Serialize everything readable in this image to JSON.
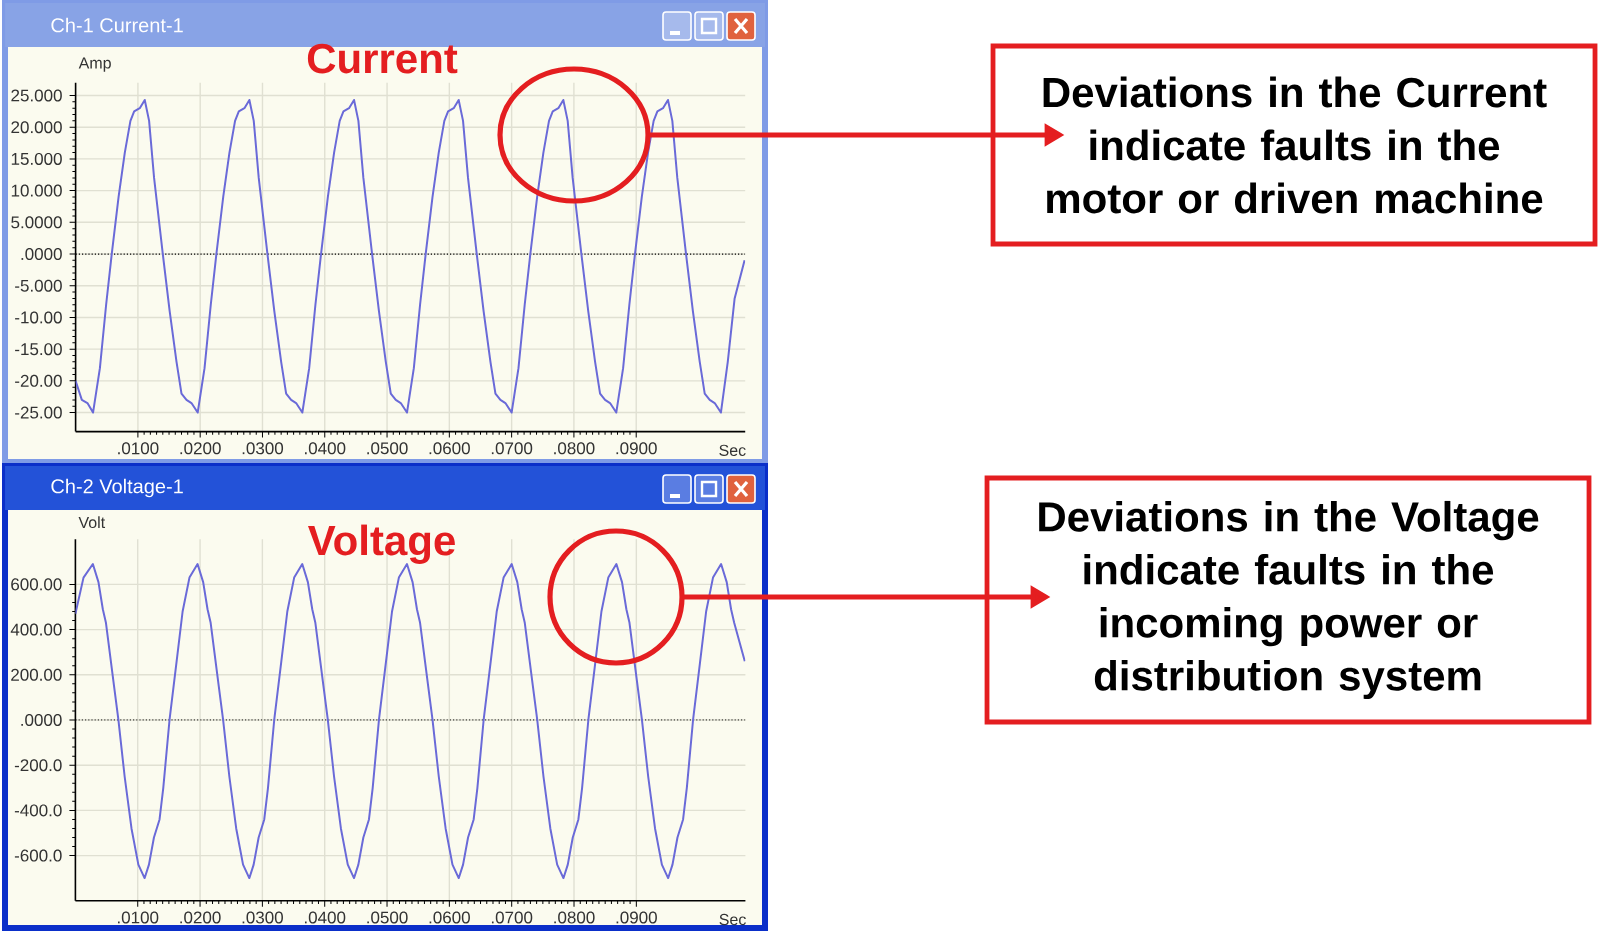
{
  "chart_data": [
    {
      "type": "line",
      "title": "Ch-1 Current-1",
      "subtitle": "Current",
      "xlabel": "Sec",
      "ylabel": "Amp",
      "color": "#6a6ad8",
      "grid": true,
      "xlim": [
        0,
        0.1075
      ],
      "ylim": [
        -28,
        27
      ],
      "xticks": [
        {
          "value": 0.01,
          "label": ".0100"
        },
        {
          "value": 0.02,
          "label": ".0200"
        },
        {
          "value": 0.03,
          "label": ".0300"
        },
        {
          "value": 0.04,
          "label": ".0400"
        },
        {
          "value": 0.05,
          "label": ".0500"
        },
        {
          "value": 0.06,
          "label": ".0600"
        },
        {
          "value": 0.07,
          "label": ".0700"
        },
        {
          "value": 0.08,
          "label": ".0800"
        },
        {
          "value": 0.09,
          "label": ".0900"
        }
      ],
      "yticks": [
        {
          "value": 25,
          "label": "25.000"
        },
        {
          "value": 20,
          "label": "20.000"
        },
        {
          "value": 15,
          "label": "15.000"
        },
        {
          "value": 10,
          "label": "10.000"
        },
        {
          "value": 5,
          "label": "5.0000"
        },
        {
          "value": 0,
          "label": ".0000"
        },
        {
          "value": -5,
          "label": "-5.000"
        },
        {
          "value": -10,
          "label": "-10.00"
        },
        {
          "value": -15,
          "label": "-15.00"
        },
        {
          "value": -20,
          "label": "-20.00"
        },
        {
          "value": -25,
          "label": "-25.00"
        }
      ],
      "ref_lines": [
        {
          "axis": "y",
          "value": 0,
          "line_style": "dotted",
          "color": "#000000"
        }
      ],
      "annotations": [
        "Deviations in the Current indicate faults in the motor or driven machine"
      ],
      "x": [
        0,
        0.001,
        0.0019,
        0.0028,
        0.0039,
        0.0049,
        0.0058,
        0.0069,
        0.0079,
        0.0088,
        0.0094,
        0.0103,
        0.0111,
        0.0118,
        0.0126,
        0.014,
        0.0151,
        0.0162,
        0.017,
        0.0178,
        0.0186,
        0.0196,
        0.0207,
        0.0217,
        0.0226,
        0.0237,
        0.0247,
        0.0256,
        0.0262,
        0.0271,
        0.0279,
        0.0286,
        0.0294,
        0.0308,
        0.0319,
        0.033,
        0.0338,
        0.0346,
        0.0354,
        0.0364,
        0.0375,
        0.0385,
        0.0394,
        0.0405,
        0.0415,
        0.0424,
        0.043,
        0.0439,
        0.0447,
        0.0454,
        0.0462,
        0.0476,
        0.0487,
        0.0498,
        0.0506,
        0.0514,
        0.0522,
        0.0532,
        0.0543,
        0.0553,
        0.0562,
        0.0573,
        0.0583,
        0.0592,
        0.0598,
        0.0607,
        0.0615,
        0.0622,
        0.063,
        0.0644,
        0.0655,
        0.0666,
        0.0674,
        0.0682,
        0.069,
        0.07,
        0.0711,
        0.0721,
        0.073,
        0.0741,
        0.0751,
        0.076,
        0.0766,
        0.0775,
        0.0783,
        0.079,
        0.0798,
        0.0812,
        0.0823,
        0.0834,
        0.0842,
        0.085,
        0.0858,
        0.0868,
        0.0879,
        0.0889,
        0.0898,
        0.0909,
        0.0919,
        0.0928,
        0.0934,
        0.0943,
        0.0951,
        0.0958,
        0.0966,
        0.098,
        0.0991,
        0.1002,
        0.101,
        0.1018,
        0.1026,
        0.1036,
        0.1047,
        0.1058,
        0.1074
      ],
      "values": [
        -20,
        -23,
        -23.5,
        -25,
        -18,
        -8,
        0,
        9,
        16,
        21,
        22.5,
        23,
        24.3,
        21,
        12,
        0,
        -9,
        -17,
        -22,
        -23,
        -23.5,
        -25,
        -18,
        -8,
        0,
        9,
        16,
        21,
        22.5,
        23,
        24.3,
        21,
        12,
        0,
        -9,
        -17,
        -22,
        -23,
        -23.5,
        -25,
        -18,
        -8,
        0,
        9,
        16,
        21,
        22.5,
        23,
        24.3,
        21,
        12,
        0,
        -9,
        -17,
        -22,
        -23,
        -23.5,
        -25,
        -18,
        -8,
        0,
        9,
        16,
        21,
        22.5,
        23,
        24.3,
        21,
        12,
        0,
        -9,
        -17,
        -22,
        -23,
        -23.5,
        -25,
        -18,
        -8,
        0,
        9,
        16,
        21,
        22.5,
        23,
        24.3,
        21,
        12,
        0,
        -9,
        -17,
        -22,
        -23,
        -23.5,
        -25,
        -18,
        -8,
        0,
        9,
        16,
        21,
        22.5,
        23,
        24.3,
        21,
        12,
        0,
        -9,
        -17,
        -22,
        -23,
        -23.5,
        -25,
        -17,
        -7,
        -1
      ]
    },
    {
      "type": "line",
      "title": "Ch-2 Voltage-1",
      "subtitle": "Voltage",
      "xlabel": "Sec",
      "ylabel": "Volt",
      "color": "#6a6ad8",
      "grid": true,
      "xlim": [
        0,
        0.1075
      ],
      "ylim": [
        -800,
        800
      ],
      "xticks": [
        {
          "value": 0.01,
          "label": ".0100"
        },
        {
          "value": 0.02,
          "label": ".0200"
        },
        {
          "value": 0.03,
          "label": ".0300"
        },
        {
          "value": 0.04,
          "label": ".0400"
        },
        {
          "value": 0.05,
          "label": ".0500"
        },
        {
          "value": 0.06,
          "label": ".0600"
        },
        {
          "value": 0.07,
          "label": ".0700"
        },
        {
          "value": 0.08,
          "label": ".0800"
        },
        {
          "value": 0.09,
          "label": ".0900"
        }
      ],
      "yticks": [
        {
          "value": 600,
          "label": "600.00"
        },
        {
          "value": 400,
          "label": "400.00"
        },
        {
          "value": 200,
          "label": "200.00"
        },
        {
          "value": 0,
          "label": ".0000"
        },
        {
          "value": -200,
          "label": "-200.0"
        },
        {
          "value": -400,
          "label": "-400.0"
        },
        {
          "value": -600,
          "label": "-600.0"
        }
      ],
      "ref_lines": [
        {
          "axis": "y",
          "value": 0,
          "line_style": "dotted",
          "color": "#000000"
        }
      ],
      "annotations": [
        "Deviations in the Voltage indicate faults in the incoming power or distribution system"
      ],
      "x": [
        0,
        0.0013,
        0.0028,
        0.0037,
        0.0044,
        0.0049,
        0.0062,
        0.0069,
        0.0079,
        0.009,
        0.0101,
        0.0111,
        0.0118,
        0.0126,
        0.0135,
        0.0141,
        0.0151,
        0.0162,
        0.0172,
        0.0183,
        0.0196,
        0.0205,
        0.0212,
        0.0217,
        0.023,
        0.0237,
        0.0247,
        0.0258,
        0.0269,
        0.0279,
        0.0286,
        0.0294,
        0.0303,
        0.0309,
        0.0319,
        0.033,
        0.034,
        0.0351,
        0.0364,
        0.0373,
        0.038,
        0.0385,
        0.0398,
        0.0405,
        0.0415,
        0.0426,
        0.0437,
        0.0447,
        0.0454,
        0.0462,
        0.0471,
        0.0477,
        0.0487,
        0.0498,
        0.0508,
        0.0519,
        0.0532,
        0.0541,
        0.0548,
        0.0553,
        0.0566,
        0.0573,
        0.0583,
        0.0594,
        0.0605,
        0.0615,
        0.0622,
        0.063,
        0.0639,
        0.0645,
        0.0655,
        0.0666,
        0.0676,
        0.0687,
        0.07,
        0.0709,
        0.0716,
        0.0721,
        0.0734,
        0.0741,
        0.0751,
        0.0762,
        0.0773,
        0.0783,
        0.079,
        0.0798,
        0.0807,
        0.0813,
        0.0823,
        0.0834,
        0.0844,
        0.0855,
        0.0868,
        0.0877,
        0.0884,
        0.0889,
        0.0902,
        0.0909,
        0.0919,
        0.093,
        0.0941,
        0.0951,
        0.0958,
        0.0966,
        0.0975,
        0.0981,
        0.0991,
        0.1002,
        0.1012,
        0.1023,
        0.1036,
        0.1045,
        0.1052,
        0.1057,
        0.1074
      ],
      "values": [
        470,
        630,
        690,
        610,
        490,
        430,
        150,
        0,
        -250,
        -480,
        -640,
        -700,
        -640,
        -520,
        -440,
        -300,
        0,
        250,
        480,
        630,
        690,
        610,
        490,
        430,
        150,
        0,
        -250,
        -480,
        -640,
        -700,
        -640,
        -520,
        -440,
        -300,
        0,
        250,
        480,
        630,
        690,
        610,
        490,
        430,
        150,
        0,
        -250,
        -480,
        -640,
        -700,
        -640,
        -520,
        -440,
        -300,
        0,
        250,
        480,
        630,
        690,
        610,
        490,
        430,
        150,
        0,
        -250,
        -480,
        -640,
        -700,
        -640,
        -520,
        -440,
        -300,
        0,
        250,
        480,
        630,
        690,
        610,
        490,
        430,
        150,
        0,
        -250,
        -480,
        -640,
        -700,
        -640,
        -520,
        -440,
        -300,
        0,
        250,
        480,
        630,
        690,
        610,
        490,
        430,
        150,
        0,
        -250,
        -480,
        -640,
        -700,
        -640,
        -520,
        -440,
        -300,
        0,
        250,
        480,
        630,
        690,
        610,
        490,
        430,
        260
      ]
    }
  ]
}
